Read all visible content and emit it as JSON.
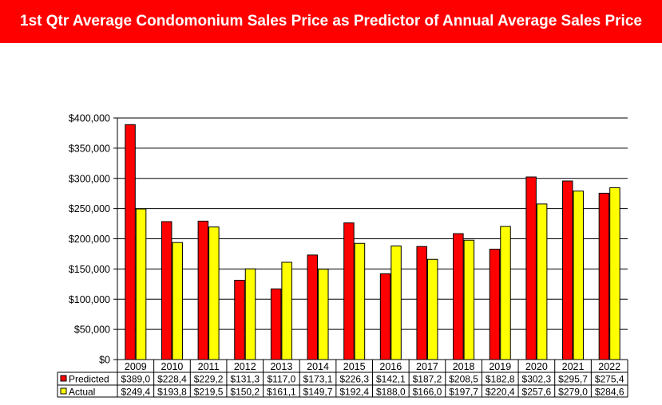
{
  "header": {
    "title": "1st Qtr Average Condomonium Sales Price as Predictor of Annual Average Sales Price",
    "background": "#ff0000"
  },
  "chart_data": {
    "type": "bar",
    "categories": [
      "2009",
      "2010",
      "2011",
      "2012",
      "2013",
      "2014",
      "2015",
      "2016",
      "2017",
      "2018",
      "2019",
      "2020",
      "2021",
      "2022"
    ],
    "series": [
      {
        "name": "Predicted",
        "color": "#ff0000",
        "values": [
          389000,
          228400,
          229200,
          131300,
          117000,
          173100,
          226300,
          142100,
          187200,
          208500,
          182800,
          302300,
          295700,
          275400
        ],
        "table_labels": [
          "$389,0",
          "$228,4",
          "$229,2",
          "$131,3",
          "$117,0",
          "$173,1",
          "$226,3",
          "$142,1",
          "$187,2",
          "$208,5",
          "$182,8",
          "$302,3",
          "$295,7",
          "$275,4"
        ]
      },
      {
        "name": "Actual",
        "color": "#ffff00",
        "values": [
          249400,
          193800,
          219500,
          150200,
          161100,
          149700,
          192400,
          188000,
          166000,
          197700,
          220400,
          257600,
          279000,
          284600
        ],
        "table_labels": [
          "$249,4",
          "$193,8",
          "$219,5",
          "$150,2",
          "$161,1",
          "$149,7",
          "$192,4",
          "$188,0",
          "$166,0",
          "$197,7",
          "$220,4",
          "$257,6",
          "$279,0",
          "$284,6"
        ]
      }
    ],
    "ylim": [
      0,
      400000
    ],
    "y_ticks": [
      0,
      50000,
      100000,
      150000,
      200000,
      250000,
      300000,
      350000,
      400000
    ],
    "y_tick_labels": [
      "$0",
      "$50,000",
      "$100,000",
      "$150,000",
      "$200,000",
      "$250,000",
      "$300,000",
      "$350,000",
      "$400,000"
    ],
    "grid": true,
    "legend": "data-table"
  }
}
